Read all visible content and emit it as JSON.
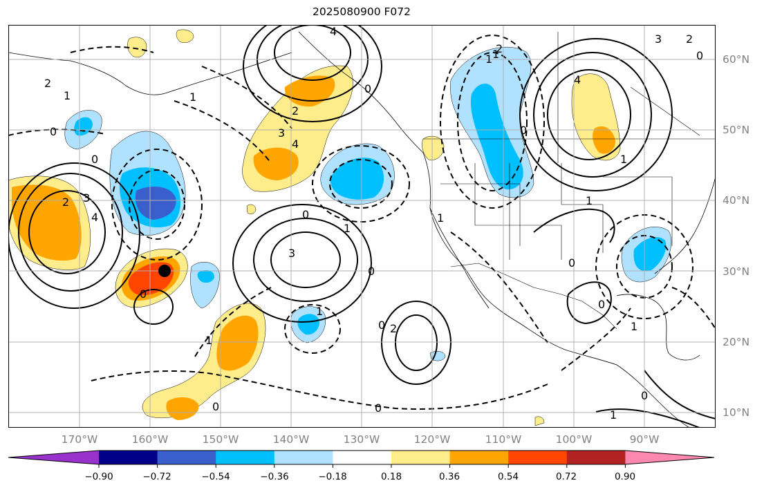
{
  "title": "2025080900 F072",
  "lat_labels": [
    "60°N",
    "50°N",
    "40°N",
    "30°N",
    "20°N",
    "10°N"
  ],
  "lon_labels": [
    "170°W",
    "160°W",
    "150°W",
    "140°W",
    "130°W",
    "120°W",
    "110°W",
    "100°W",
    "90°W"
  ],
  "colorbar": {
    "colors": [
      "#9932cc",
      "#00008b",
      "#3a5fcd",
      "#00bfff",
      "#b0e2ff",
      "#ffffff",
      "#ffec8b",
      "#ffa500",
      "#ff4500",
      "#b22222",
      "#ff88b0"
    ],
    "tick_labels": [
      "−0.90",
      "−0.72",
      "−0.54",
      "−0.36",
      "−0.18",
      "0.18",
      "0.36",
      "0.54",
      "0.72",
      "0.90"
    ]
  },
  "marker": {
    "name": "storm-center-marker",
    "lon": "156°W",
    "lat": "30°N"
  },
  "contour_labels": [
    {
      "text": "4"
    },
    {
      "text": "2"
    },
    {
      "text": "1"
    },
    {
      "text": "0"
    },
    {
      "text": "3"
    },
    {
      "text": "2"
    },
    {
      "text": "4"
    },
    {
      "text": "0"
    },
    {
      "text": "2"
    },
    {
      "text": "1"
    },
    {
      "text": "0"
    },
    {
      "text": "3"
    },
    {
      "text": "4"
    },
    {
      "text": "1"
    },
    {
      "text": "0"
    },
    {
      "text": "3"
    },
    {
      "text": "1"
    },
    {
      "text": "0"
    },
    {
      "text": "2"
    },
    {
      "text": "0"
    },
    {
      "text": "1"
    },
    {
      "text": "0"
    },
    {
      "text": "1"
    },
    {
      "text": "0"
    },
    {
      "text": "0"
    },
    {
      "text": "1"
    },
    {
      "text": "0"
    },
    {
      "text": "1"
    },
    {
      "text": "2"
    },
    {
      "text": "4"
    },
    {
      "text": "3"
    },
    {
      "text": "2"
    },
    {
      "text": "0"
    },
    {
      "text": "1"
    },
    {
      "text": "0"
    },
    {
      "text": "0"
    },
    {
      "text": "1"
    },
    {
      "text": "0"
    },
    {
      "text": "1"
    },
    {
      "text": "1"
    }
  ]
}
